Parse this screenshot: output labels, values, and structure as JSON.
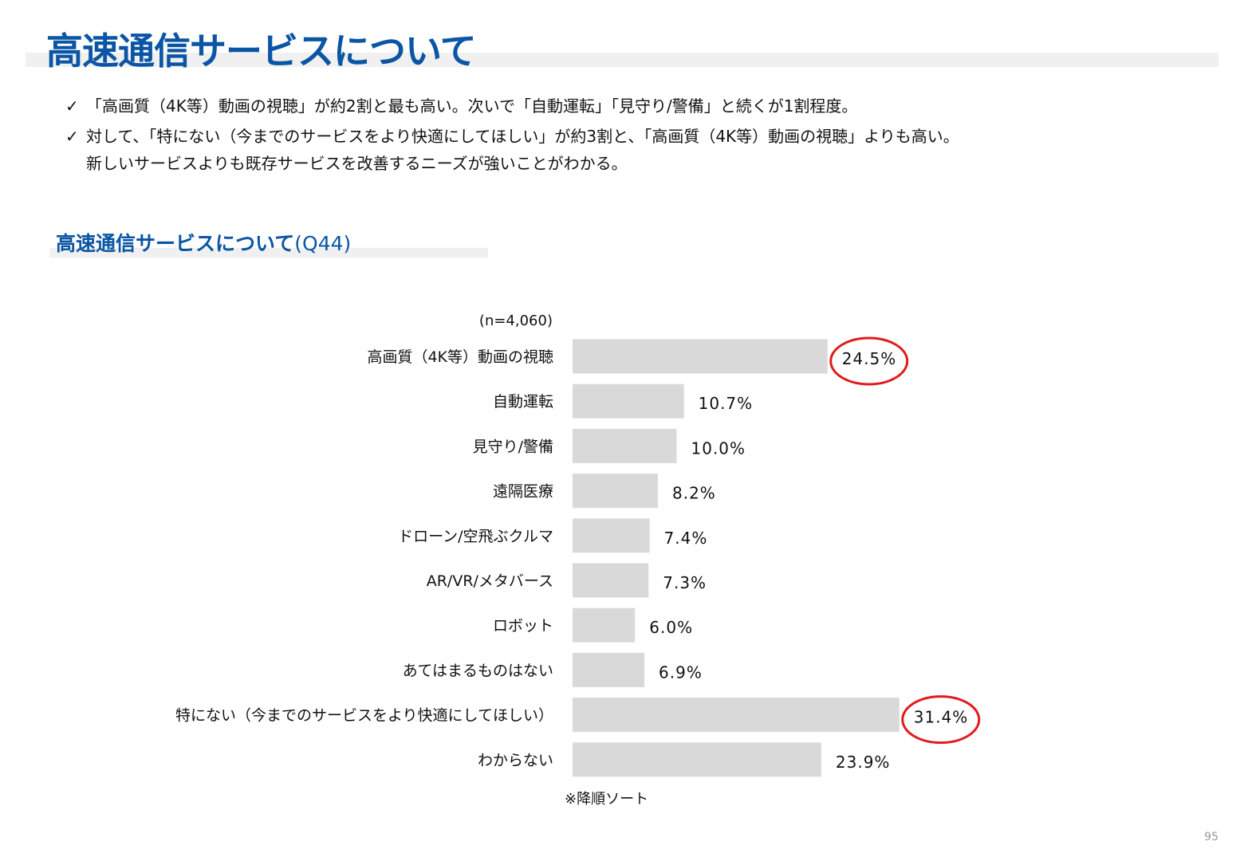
{
  "header": {
    "title": "高速通信サービスについて"
  },
  "bullets": [
    {
      "icon": "check-icon",
      "lines": [
        "「高画質（4K等）動画の視聴」が約2割と最も高い。次いで「自動運転」「見守り/警備」と続くが1割程度。"
      ]
    },
    {
      "icon": "check-icon",
      "lines": [
        "対して、「特にない（今までのサービスをより快適にしてほしい」が約3割と、「高画質（4K等）動画の視聴」よりも高い。",
        "新しいサービスよりも既存サービスを改善するニーズが強いことがわかる。"
      ]
    }
  ],
  "section": {
    "title_bold": "高速通信サービスについて",
    "title_suffix": "(Q44)"
  },
  "sample_size": "(n=4,060)",
  "note": "※降順ソート",
  "page_number": "95",
  "colors": {
    "title": "#0a55a5",
    "bar": "#d9d9d9",
    "highlight_circle": "#e01b1b"
  },
  "chart_data": {
    "type": "bar",
    "orientation": "horizontal",
    "categories": [
      "高画質（4K等）動画の視聴",
      "自動運転",
      "見守り/警備",
      "遠隔医療",
      "ドローン/空飛ぶクルマ",
      "AR/VR/メタバース",
      "ロボット",
      "あてはまるものはない",
      "特にない（今までのサービスをより快適にしてほしい）",
      "わからない"
    ],
    "values": [
      24.5,
      10.7,
      10.0,
      8.2,
      7.4,
      7.3,
      6.0,
      6.9,
      31.4,
      23.9
    ],
    "value_labels": [
      "24.5%",
      "10.7%",
      "10.0%",
      "8.2%",
      "7.4%",
      "7.3%",
      "6.0%",
      "6.9%",
      "31.4%",
      "23.9%"
    ],
    "highlighted": [
      "24.5%",
      "31.4%"
    ],
    "unit": "%",
    "grid": false,
    "legend": false
  }
}
